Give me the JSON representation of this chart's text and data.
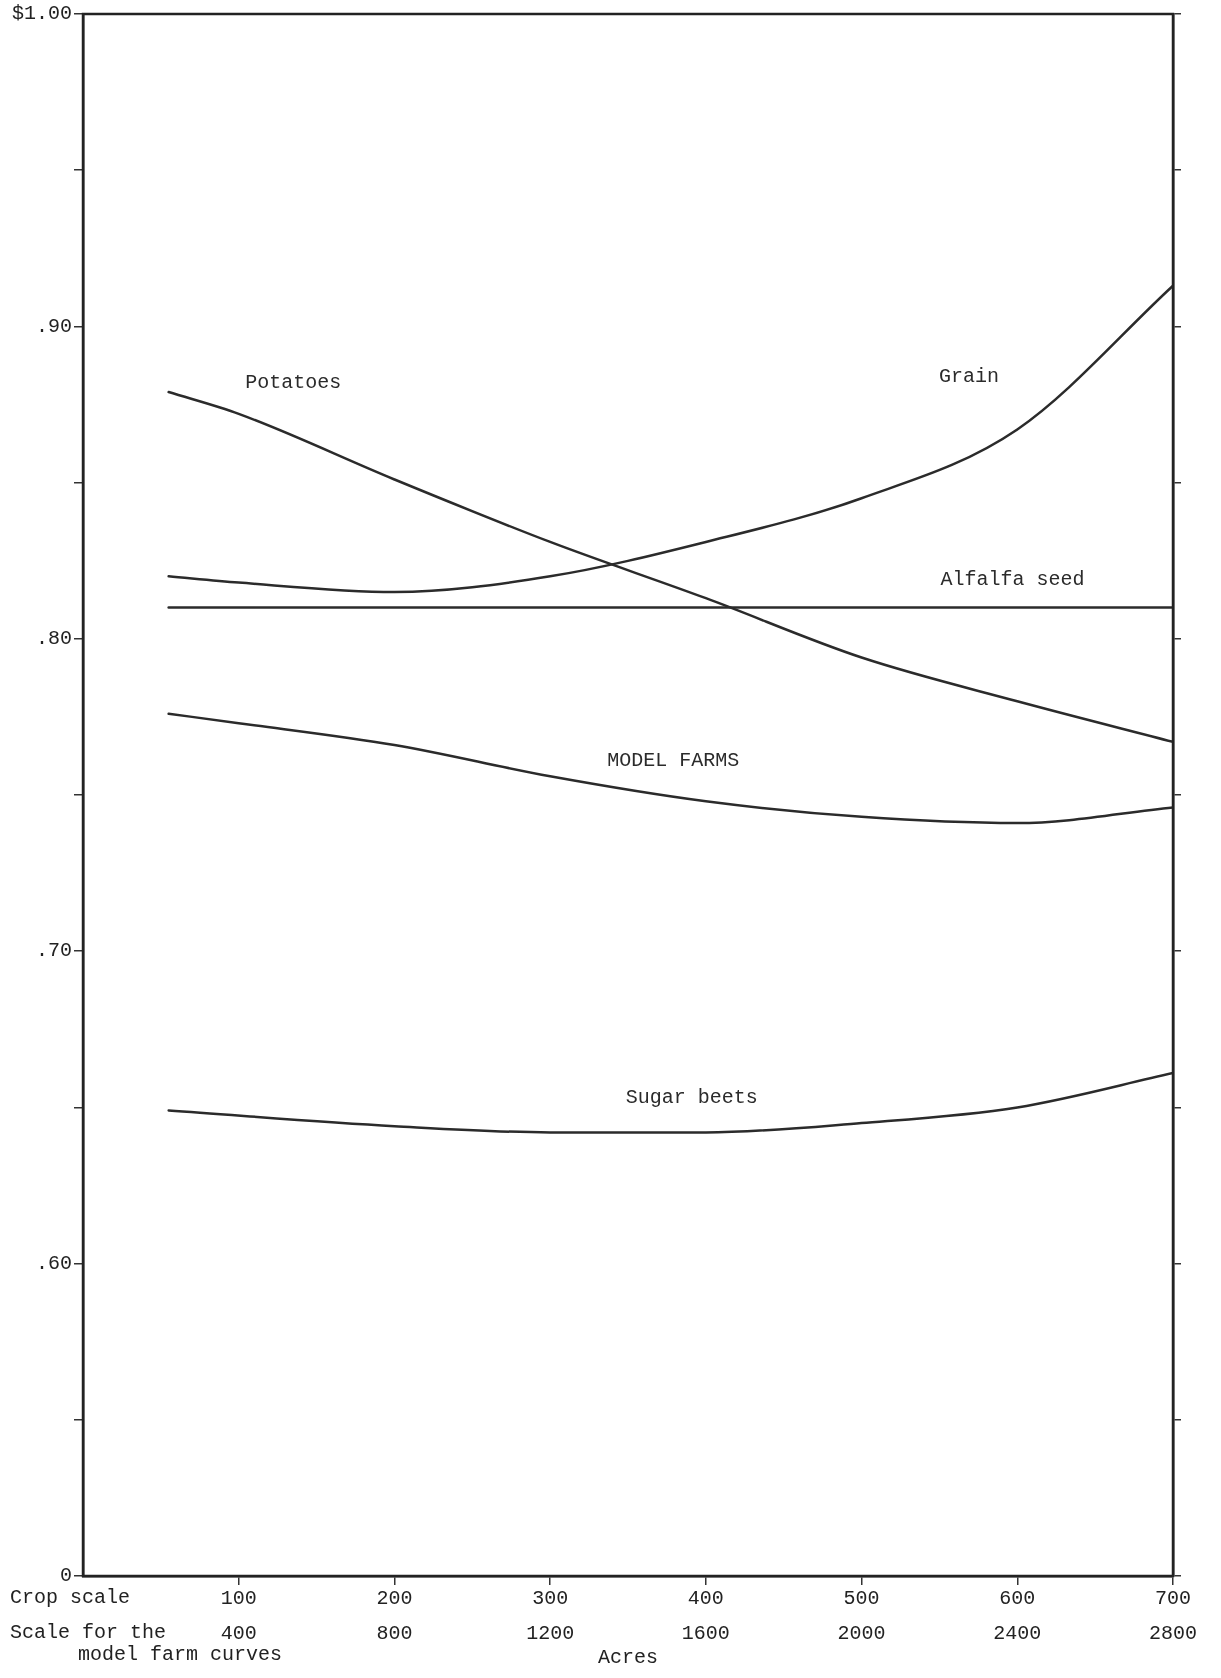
{
  "chart_data": {
    "type": "line",
    "xlabel": "Acres",
    "x2label": "Scale for the model farm curves",
    "annotations": [
      "Crop scale"
    ],
    "xlim": [
      0,
      700
    ],
    "xticks": [
      100,
      200,
      300,
      400,
      500,
      600,
      700
    ],
    "x2lim": [
      0,
      2800
    ],
    "x2ticks": [
      400,
      800,
      1200,
      1600,
      2000,
      2400,
      2800
    ],
    "ylim": [
      0.5,
      1.0
    ],
    "yticks": [
      {
        "value": 0.5,
        "label": "0"
      },
      {
        "value": 0.55,
        "label": null
      },
      {
        "value": 0.6,
        "label": ".60"
      },
      {
        "value": 0.65,
        "label": null
      },
      {
        "value": 0.7,
        "label": ".70"
      },
      {
        "value": 0.75,
        "label": null
      },
      {
        "value": 0.8,
        "label": ".80"
      },
      {
        "value": 0.85,
        "label": null
      },
      {
        "value": 0.9,
        "label": ".90"
      },
      {
        "value": 0.95,
        "label": null
      },
      {
        "value": 1.0,
        "label": "$1.00"
      }
    ],
    "grid": false,
    "legend": false,
    "marker": "none",
    "line_style": "solid",
    "series": [
      {
        "name": "Potatoes",
        "color": "#2b2b2b",
        "x": [
          55,
          100,
          200,
          300,
          400,
          500,
          600,
          700
        ],
        "values": [
          0.879,
          0.872,
          0.851,
          0.831,
          0.813,
          0.794,
          0.78,
          0.767
        ]
      },
      {
        "name": "Grain",
        "color": "#2b2b2b",
        "x": [
          55,
          100,
          200,
          300,
          400,
          500,
          600,
          700
        ],
        "values": [
          0.82,
          0.818,
          0.815,
          0.82,
          0.831,
          0.845,
          0.867,
          0.913
        ]
      },
      {
        "name": "Alfalfa seed",
        "color": "#2b2b2b",
        "x": [
          55,
          700
        ],
        "values": [
          0.81,
          0.81
        ]
      },
      {
        "name": "MODEL FARMS",
        "color": "#2b2b2b",
        "axis": "x2",
        "x": [
          220,
          400,
          800,
          1200,
          1600,
          2000,
          2400,
          2800
        ],
        "values": [
          0.776,
          0.773,
          0.766,
          0.756,
          0.748,
          0.743,
          0.741,
          0.746
        ]
      },
      {
        "name": "Sugar beets",
        "color": "#2b2b2b",
        "x": [
          55,
          200,
          300,
          400,
          500,
          600,
          700
        ],
        "values": [
          0.649,
          0.644,
          0.642,
          0.642,
          0.645,
          0.65,
          0.661
        ]
      }
    ]
  }
}
